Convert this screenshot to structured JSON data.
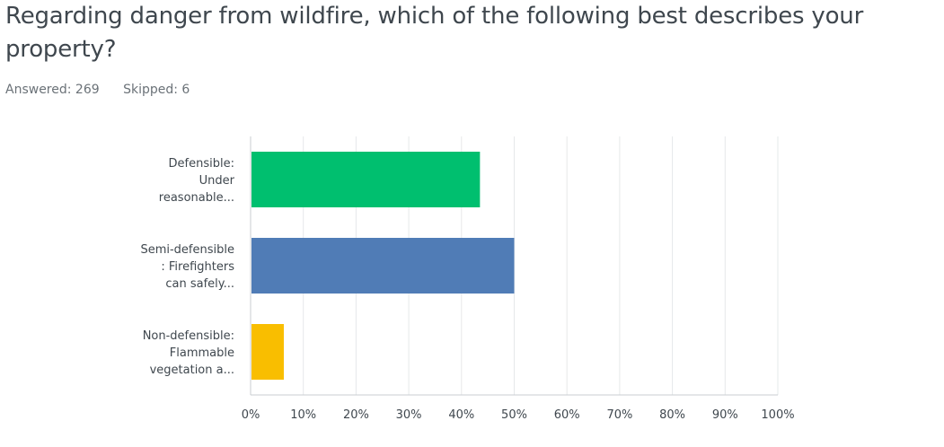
{
  "question": {
    "title": "Regarding danger from wildfire, which of the following best describes your property?"
  },
  "stats": {
    "answered": "Answered: 269",
    "skipped": "Skipped: 6"
  },
  "colors": {
    "grid": "#e6e8ea",
    "axis": "#c8cdd1"
  },
  "chart_data": {
    "type": "bar",
    "orientation": "horizontal",
    "categories": [
      [
        "Defensible:",
        "Under",
        "reasonable..."
      ],
      [
        "Semi-defensible",
        ": Firefighters",
        "can safely..."
      ],
      [
        "Non-defensible:",
        "Flammable",
        "vegetation a..."
      ]
    ],
    "values": [
      43.5,
      50.0,
      6.3
    ],
    "colors": [
      "#00bf6f",
      "#507cb6",
      "#f9be00"
    ],
    "xlim": [
      0,
      100
    ],
    "xticks": [
      "0%",
      "10%",
      "20%",
      "30%",
      "40%",
      "50%",
      "60%",
      "70%",
      "80%",
      "90%",
      "100%"
    ],
    "grid": true
  }
}
